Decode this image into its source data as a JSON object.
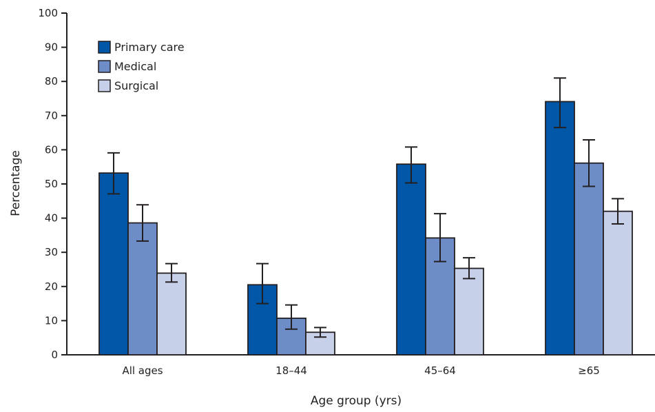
{
  "chart_data": {
    "type": "bar",
    "title": "",
    "xlabel": "Age group (yrs)",
    "ylabel": "Percentage",
    "categories": [
      "All ages",
      "18–44",
      "45–64",
      "≥65"
    ],
    "ylim": [
      0,
      100
    ],
    "yticks": [
      0,
      10,
      20,
      30,
      40,
      50,
      60,
      70,
      80,
      90,
      100
    ],
    "grid": false,
    "legend_position": "top-left",
    "series": [
      {
        "name": "Primary care",
        "color": "#0057a8",
        "values": [
          53.2,
          20.5,
          55.8,
          74.1
        ],
        "error_low": [
          47.1,
          15.0,
          50.3,
          66.5
        ],
        "error_high": [
          59.1,
          26.7,
          60.8,
          81.0
        ]
      },
      {
        "name": "Medical",
        "color": "#6d8cc8",
        "values": [
          38.6,
          10.7,
          34.2,
          56.1
        ],
        "error_low": [
          33.3,
          7.5,
          27.3,
          49.3
        ],
        "error_high": [
          43.9,
          14.6,
          41.3,
          62.9
        ]
      },
      {
        "name": "Surgical",
        "color": "#c6d0e9",
        "values": [
          23.9,
          6.6,
          25.3,
          42.0
        ],
        "error_low": [
          21.3,
          5.2,
          22.3,
          38.3
        ],
        "error_high": [
          26.7,
          8.0,
          28.4,
          45.7
        ]
      }
    ]
  }
}
